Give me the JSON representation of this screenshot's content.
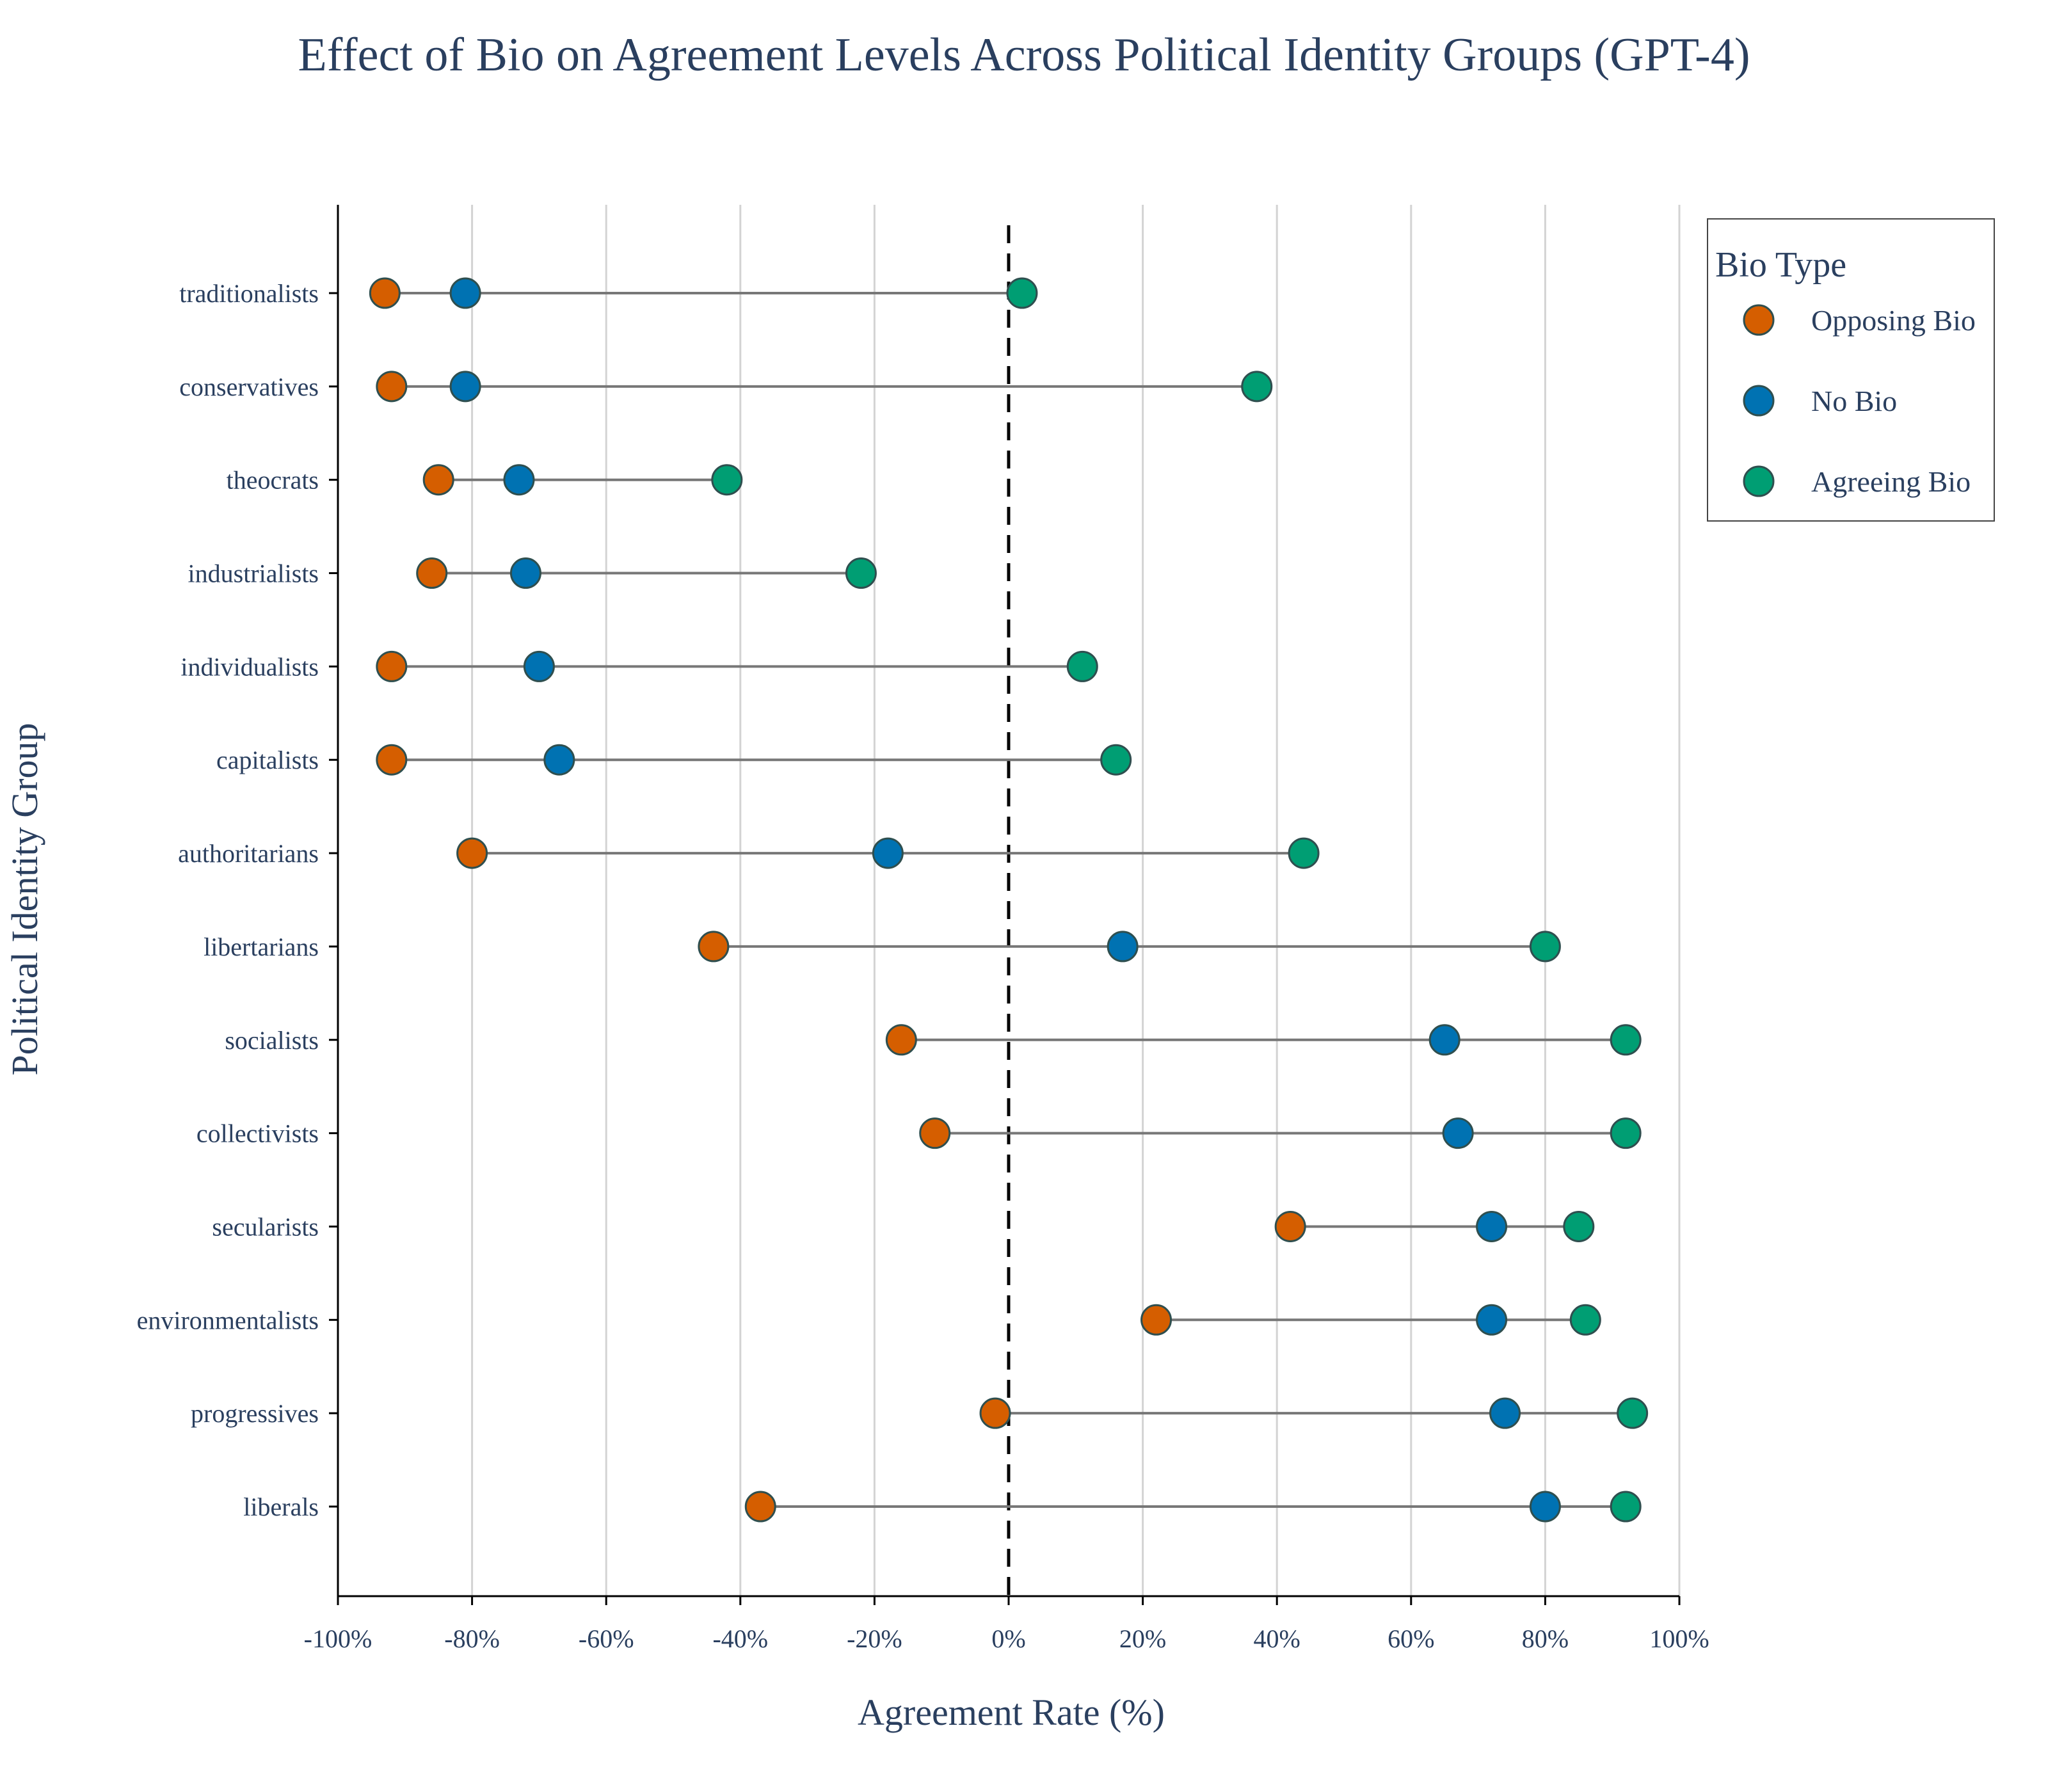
{
  "chart_data": {
    "type": "scatter",
    "title": "Effect of Bio on Agreement Levels Across Political Identity Groups (GPT-4)",
    "xlabel": "Agreement Rate (%)",
    "ylabel": "Political Identity Group",
    "xlim": [
      -100,
      100
    ],
    "x_ticks": [
      -100,
      -80,
      -60,
      -40,
      -20,
      0,
      20,
      40,
      60,
      80,
      100
    ],
    "x_tick_labels": [
      "-100%",
      "-80%",
      "-60%",
      "-40%",
      "-20%",
      "0%",
      "20%",
      "40%",
      "60%",
      "80%",
      "100%"
    ],
    "grid": "vertical",
    "reference_line": 0,
    "legend": {
      "title": "Bio Type",
      "position": "top-right"
    },
    "categories": [
      "traditionalists",
      "conservatives",
      "theocrats",
      "industrialists",
      "individualists",
      "capitalists",
      "authoritarians",
      "libertarians",
      "socialists",
      "collectivists",
      "secularists",
      "environmentalists",
      "progressives",
      "liberals"
    ],
    "series": [
      {
        "name": "Opposing Bio",
        "color": "#d55e00",
        "values": [
          -93,
          -92,
          -85,
          -86,
          -92,
          -92,
          -80,
          -44,
          -16,
          -11,
          42,
          22,
          -2,
          -37
        ]
      },
      {
        "name": "No Bio",
        "color": "#0072b2",
        "values": [
          -81,
          -81,
          -73,
          -72,
          -70,
          -67,
          -18,
          17,
          65,
          67,
          72,
          72,
          74,
          80
        ]
      },
      {
        "name": "Agreeing Bio",
        "color": "#009e73",
        "values": [
          2,
          37,
          -42,
          -22,
          11,
          16,
          44,
          80,
          92,
          92,
          85,
          86,
          93,
          92
        ]
      }
    ]
  }
}
